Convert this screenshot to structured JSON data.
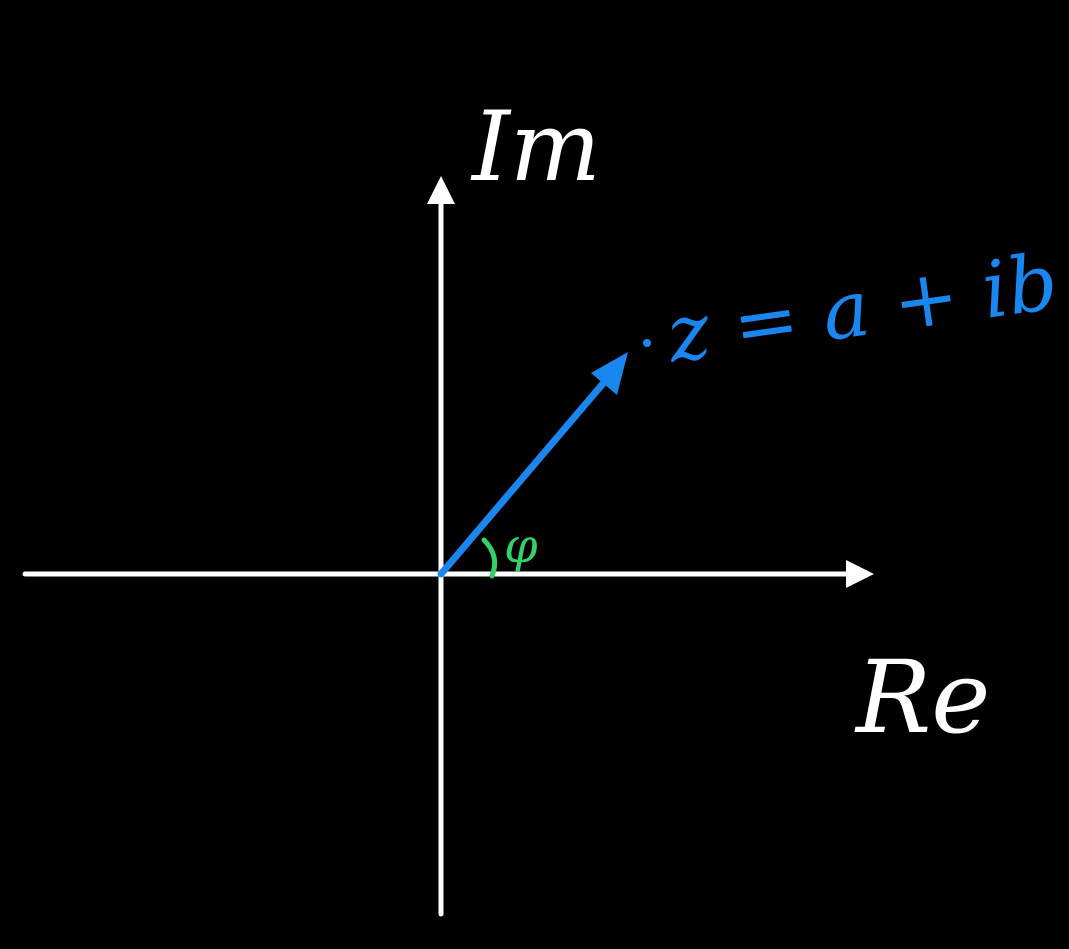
{
  "labels": {
    "imaginary_axis": "Im",
    "real_axis": "Re",
    "point": "z = a + ib",
    "angle": "φ"
  },
  "colors": {
    "background": "#000000",
    "axes": "#ffffff",
    "vector": "#1a86f0",
    "angle": "#34d06a"
  }
}
